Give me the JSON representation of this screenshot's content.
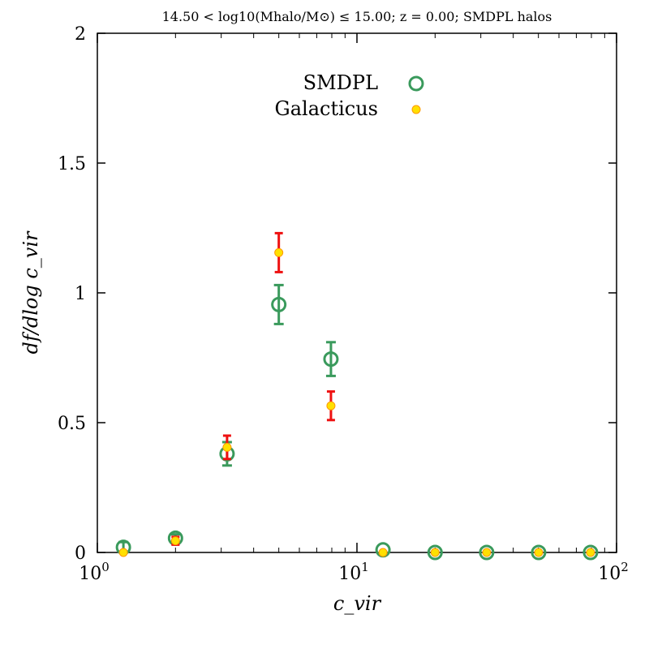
{
  "chart_data": {
    "type": "scatter",
    "title": "14.50 < log10(Mhalo/M⊙) ≤ 15.00; z = 0.00; SMDPL halos",
    "xlabel": "c_vir",
    "ylabel": "df/dlog c_vir",
    "xscale": "log",
    "xlim": [
      1,
      100
    ],
    "ylim": [
      0,
      2
    ],
    "x_ticks": [
      {
        "value": 1,
        "base": "10",
        "exp": "0"
      },
      {
        "value": 10,
        "base": "10",
        "exp": "1"
      },
      {
        "value": 100,
        "base": "10",
        "exp": "2"
      }
    ],
    "y_ticks": [
      {
        "value": 0,
        "label": "0"
      },
      {
        "value": 0.5,
        "label": "0.5"
      },
      {
        "value": 1,
        "label": "1"
      },
      {
        "value": 1.5,
        "label": "1.5"
      },
      {
        "value": 2,
        "label": "2"
      }
    ],
    "legend_position": "top-right",
    "series": [
      {
        "name": "SMDPL",
        "color": "#3a9a5c",
        "marker": "open-circle",
        "points": [
          {
            "x": 1.26,
            "y": 0.02,
            "err": 0.02
          },
          {
            "x": 2.0,
            "y": 0.055,
            "err": 0.015
          },
          {
            "x": 3.16,
            "y": 0.38,
            "err": 0.045
          },
          {
            "x": 5.0,
            "y": 0.955,
            "err": 0.075
          },
          {
            "x": 7.94,
            "y": 0.745,
            "err": 0.065
          },
          {
            "x": 12.6,
            "y": 0.01,
            "err": 0.0
          },
          {
            "x": 20.0,
            "y": 0.0,
            "err": 0.0
          },
          {
            "x": 31.6,
            "y": 0.0,
            "err": 0.0
          },
          {
            "x": 50.1,
            "y": 0.0,
            "err": 0.0
          },
          {
            "x": 79.4,
            "y": 0.0,
            "err": 0.0
          }
        ]
      },
      {
        "name": "Galacticus",
        "color": "#ee1111",
        "marker": "filled-circle-yellow",
        "points": [
          {
            "x": 1.26,
            "y": 0.0,
            "err": 0.0
          },
          {
            "x": 2.0,
            "y": 0.045,
            "err": 0.015
          },
          {
            "x": 3.16,
            "y": 0.405,
            "err": 0.045
          },
          {
            "x": 5.0,
            "y": 1.155,
            "err": 0.075
          },
          {
            "x": 7.94,
            "y": 0.565,
            "err": 0.055
          },
          {
            "x": 12.6,
            "y": 0.0,
            "err": 0.0
          },
          {
            "x": 20.0,
            "y": 0.0,
            "err": 0.0
          },
          {
            "x": 31.6,
            "y": 0.0,
            "err": 0.0
          },
          {
            "x": 50.1,
            "y": 0.0,
            "err": 0.0
          },
          {
            "x": 79.4,
            "y": 0.0,
            "err": 0.0
          }
        ]
      }
    ]
  }
}
